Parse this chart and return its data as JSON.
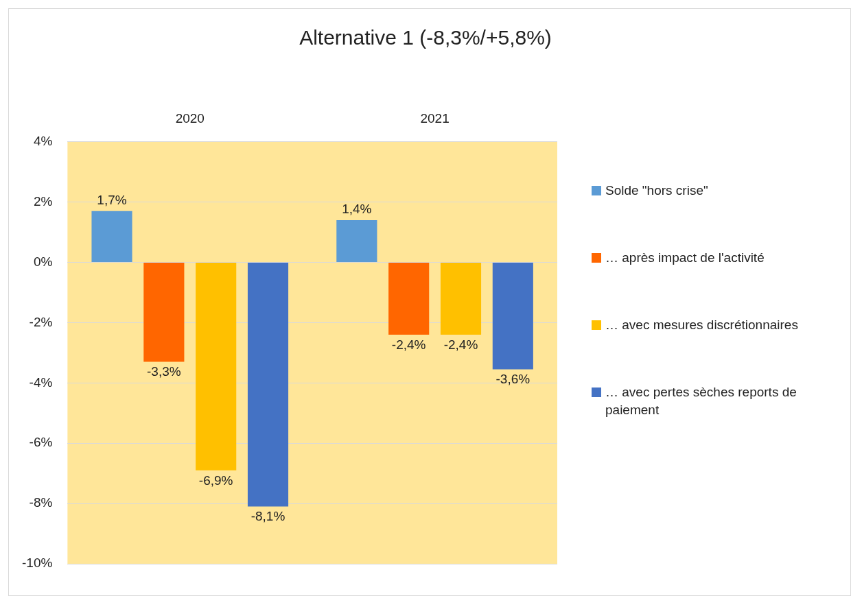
{
  "chart_data": {
    "type": "bar",
    "title": "Alternative 1 (-8,3%/+5,8%)",
    "categories": [
      "2020",
      "2021"
    ],
    "series": [
      {
        "name": "Solde \"hors crise\"",
        "color": "#5b9bd5",
        "values": [
          1.7,
          1.4
        ],
        "value_labels": [
          "1,7%",
          "1,4%"
        ]
      },
      {
        "name": "… après impact de l'activité",
        "color": "#ff6600",
        "values": [
          -3.3,
          -2.4
        ],
        "value_labels": [
          "-3,3%",
          "-2,4%"
        ]
      },
      {
        "name": "… avec mesures discrétionnaires",
        "color": "#ffc000",
        "values": [
          -6.9,
          -2.4
        ],
        "value_labels": [
          "-6,9%",
          "-2,4%"
        ]
      },
      {
        "name": "… avec pertes sèches reports de paiement",
        "color": "#4472c4",
        "values": [
          -8.1,
          -3.55
        ],
        "value_labels": [
          "-8,1%",
          "-3,6%"
        ]
      }
    ],
    "ylim": [
      -10,
      4
    ],
    "yticks": [
      {
        "value": -10,
        "label": "-10%"
      },
      {
        "value": -8,
        "label": "-8%"
      },
      {
        "value": -6,
        "label": "-6%"
      },
      {
        "value": -4,
        "label": "-4%"
      },
      {
        "value": -2,
        "label": "-2%"
      },
      {
        "value": 0,
        "label": "0%"
      },
      {
        "value": 2,
        "label": "2%"
      },
      {
        "value": 4,
        "label": "4%"
      }
    ],
    "grid": "y",
    "legend": "right"
  }
}
